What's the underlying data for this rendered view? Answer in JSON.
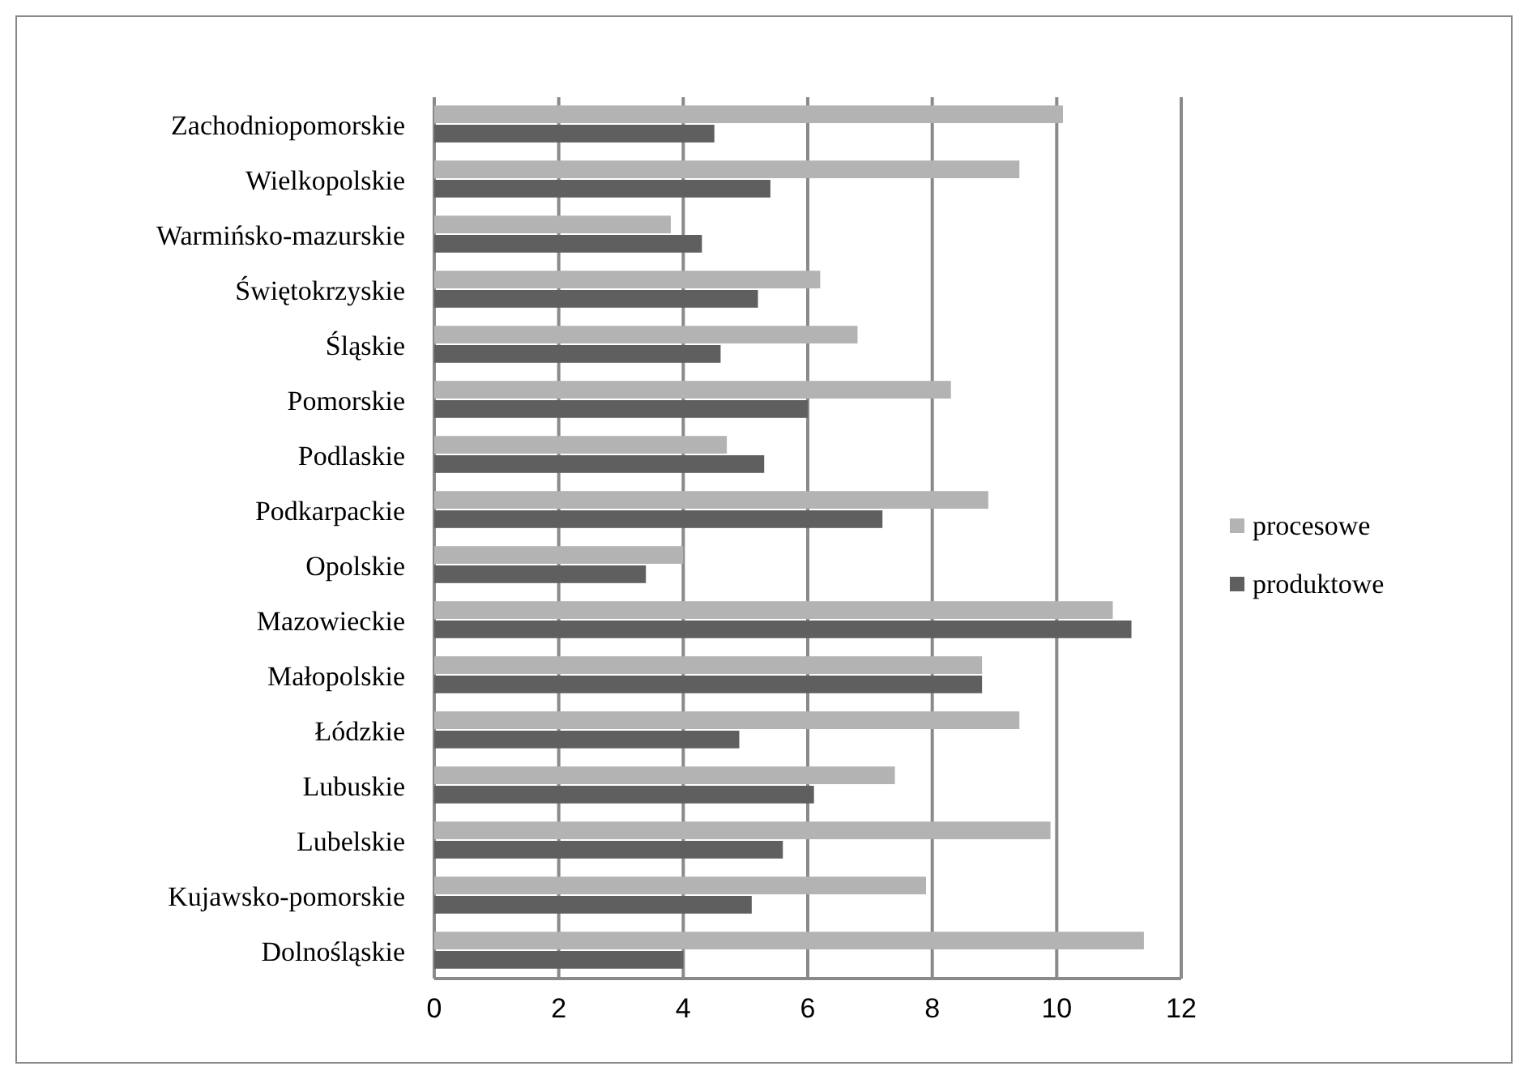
{
  "chart_data": {
    "type": "bar",
    "orientation": "horizontal",
    "categories": [
      "Zachodniopomorskie",
      "Wielkopolskie",
      "Warmińsko-mazurskie",
      "Świętokrzyskie",
      "Śląskie",
      "Pomorskie",
      "Podlaskie",
      "Podkarpackie",
      "Opolskie",
      "Mazowieckie",
      "Małopolskie",
      "Łódzkie",
      "Lubuskie",
      "Lubelskie",
      "Kujawsko-pomorskie",
      "Dolnośląskie"
    ],
    "series": [
      {
        "name": "procesowe",
        "color": "#b3b3b3",
        "values": [
          10.1,
          9.4,
          3.8,
          6.2,
          6.8,
          8.3,
          4.7,
          8.9,
          4.0,
          10.9,
          8.8,
          9.4,
          7.4,
          9.9,
          7.9,
          11.4
        ]
      },
      {
        "name": "produktowe",
        "color": "#5f5f5f",
        "values": [
          4.5,
          5.4,
          4.3,
          5.2,
          4.6,
          6.0,
          5.3,
          7.2,
          3.4,
          11.2,
          8.8,
          4.9,
          6.1,
          5.6,
          5.1,
          4.0
        ]
      }
    ],
    "xlim": [
      0,
      12
    ],
    "xticks": [
      0,
      2,
      4,
      6,
      8,
      10,
      12
    ],
    "grid": "x",
    "legend": "right"
  }
}
